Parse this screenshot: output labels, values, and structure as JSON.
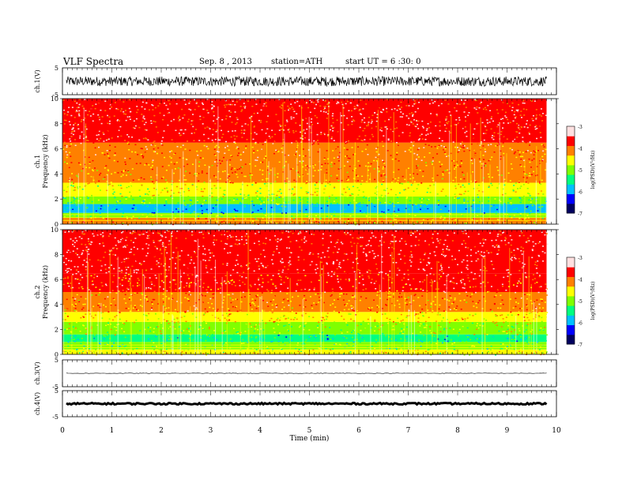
{
  "header": {
    "title": "VLF  Spectra",
    "date": "Sep. 8  , 2013",
    "station": "station=ATH",
    "start": "start  UT  =   6  :30: 0"
  },
  "chart_data": {
    "type": "heatmap",
    "x_axis": {
      "label": "Time  (min)",
      "range": [
        0,
        10
      ],
      "ticks": [
        "0",
        "1",
        "2",
        "3",
        "4",
        "5",
        "6",
        "7",
        "8",
        "9",
        "10"
      ]
    },
    "colorbar": {
      "label": "log(PSD)(V²/Hz)",
      "range": [
        -7,
        -3
      ],
      "ticks": [
        "-3",
        "-4",
        "-5",
        "-6",
        "-7"
      ],
      "colors": [
        "#000060",
        "#0000ff",
        "#00c0ff",
        "#00ff80",
        "#80ff00",
        "#ffff00",
        "#ff8000",
        "#ff0000",
        "#ffe0e0"
      ]
    },
    "panels": [
      {
        "name": "ch.1(V)",
        "kind": "waveform",
        "ylim": [
          -5,
          5
        ],
        "ticks": [
          "5",
          "-5"
        ],
        "amplitude": 1.8
      },
      {
        "name": "ch.1",
        "ylabel": "Frequency  (kHz)",
        "kind": "spectrogram",
        "ylim": [
          0,
          10
        ],
        "ticks": [
          "0",
          "2",
          "4",
          "6",
          "8",
          "10"
        ],
        "bands_khz": [
          {
            "from": 0.0,
            "to": 0.5,
            "log_psd": -4.3
          },
          {
            "from": 0.5,
            "to": 0.9,
            "log_psd": -5.0
          },
          {
            "from": 0.9,
            "to": 1.6,
            "log_psd": -5.8
          },
          {
            "from": 1.6,
            "to": 2.2,
            "log_psd": -5.2
          },
          {
            "from": 2.2,
            "to": 3.3,
            "log_psd": -4.7
          },
          {
            "from": 3.3,
            "to": 5.0,
            "log_psd": -4.2
          },
          {
            "from": 5.0,
            "to": 6.5,
            "log_psd": -3.9
          },
          {
            "from": 6.5,
            "to": 10.0,
            "log_psd": -3.6
          }
        ]
      },
      {
        "name": "ch.2",
        "ylabel": "Frequency  (kHz)",
        "kind": "spectrogram",
        "ylim": [
          0,
          10
        ],
        "ticks": [
          "0",
          "2",
          "4",
          "6",
          "8",
          "10"
        ],
        "bands_khz": [
          {
            "from": 0.0,
            "to": 0.4,
            "log_psd": -4.6
          },
          {
            "from": 0.4,
            "to": 1.0,
            "log_psd": -5.2
          },
          {
            "from": 1.0,
            "to": 1.6,
            "log_psd": -5.5
          },
          {
            "from": 1.6,
            "to": 2.6,
            "log_psd": -4.8
          },
          {
            "from": 2.6,
            "to": 3.4,
            "log_psd": -4.5
          },
          {
            "from": 3.4,
            "to": 5.0,
            "log_psd": -4.1
          },
          {
            "from": 5.0,
            "to": 6.5,
            "log_psd": -3.8
          },
          {
            "from": 6.5,
            "to": 10.0,
            "log_psd": -3.5
          }
        ]
      },
      {
        "name": "ch.3(V)",
        "kind": "waveform",
        "ylim": [
          -5,
          5
        ],
        "ticks": [
          "5",
          "-5"
        ],
        "amplitude": 0.1
      },
      {
        "name": "ch.4(V)",
        "kind": "waveform",
        "ylim": [
          -5,
          5
        ],
        "ticks": [
          "5",
          "-5"
        ],
        "amplitude": 0.3
      }
    ],
    "data_end_min": 9.8
  }
}
